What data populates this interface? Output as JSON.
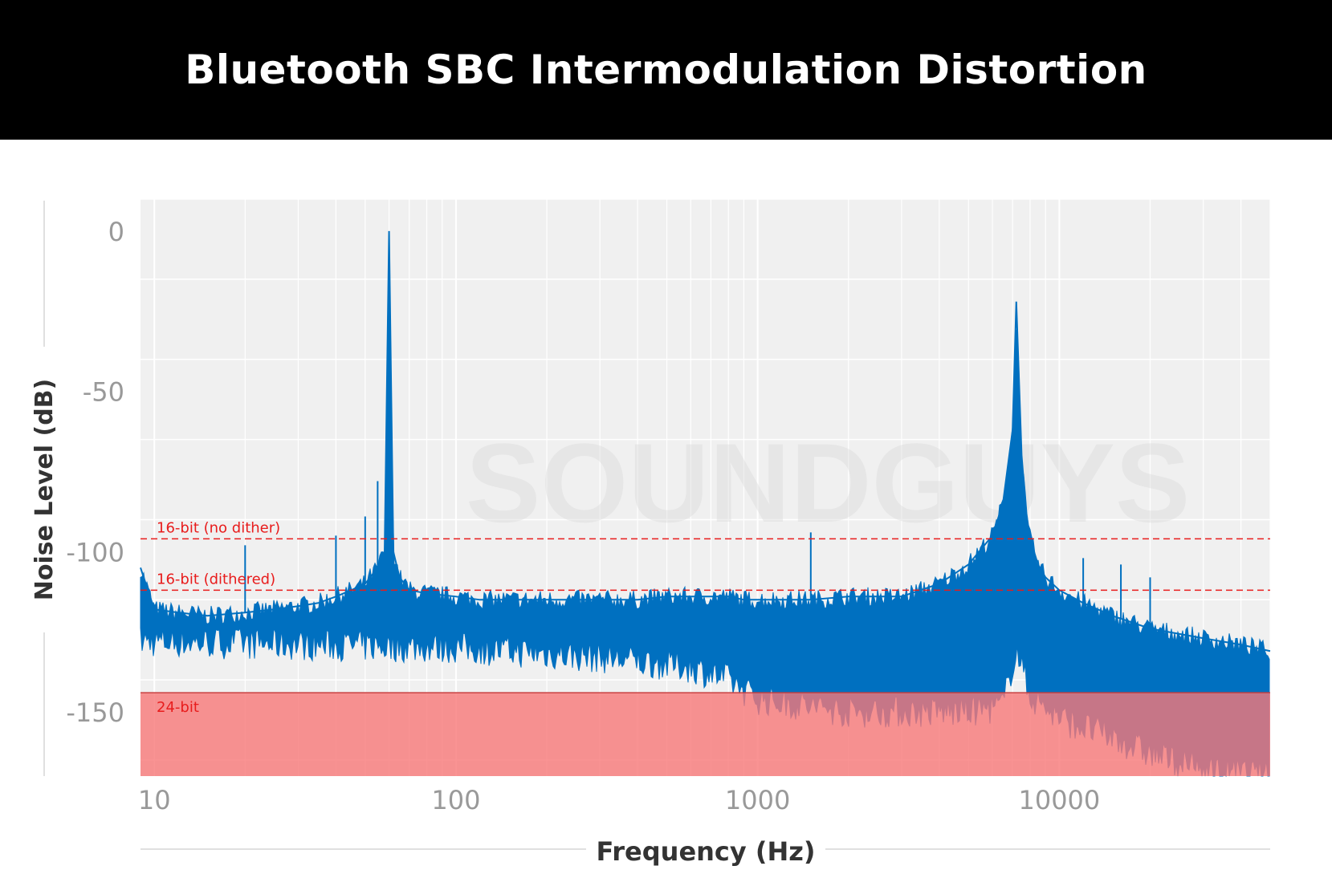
{
  "chart_data": {
    "type": "line",
    "title": "Bluetooth SBC Intermodulation Distortion",
    "xlabel": "Frequency (Hz)",
    "ylabel": "Noise Level (dB)",
    "x_scale": "log",
    "xlim": [
      9,
      50000
    ],
    "ylim": [
      -170,
      10
    ],
    "x_ticks": [
      10,
      100,
      1000,
      10000
    ],
    "x_tick_labels": [
      "10",
      "100",
      "1000",
      "10000"
    ],
    "y_ticks": [
      0,
      -50,
      -100,
      -150
    ],
    "y_tick_labels": [
      "0",
      "-50",
      "-100",
      "-150"
    ],
    "grid": true,
    "series": [
      {
        "color": "#0070c0",
        "x": [
          9,
          10,
          12,
          15,
          20,
          25,
          30,
          35,
          40,
          45,
          50,
          55,
          58,
          60,
          62,
          65,
          70,
          80,
          100,
          120,
          150,
          200,
          300,
          400,
          500,
          600,
          700,
          800,
          900,
          1000,
          1200,
          1500,
          2000,
          2500,
          3000,
          4000,
          5000,
          6000,
          6500,
          7000,
          7200,
          7500,
          7800,
          8000,
          8500,
          9000,
          10000,
          12000,
          15000,
          20000,
          30000,
          40000,
          50000
        ],
        "y": [
          -105,
          -118,
          -119,
          -120,
          -119,
          -118,
          -117,
          -116,
          -114,
          -112,
          -110,
          -105,
          -100,
          0,
          -100,
          -108,
          -112,
          -113,
          -114,
          -115,
          -115,
          -115,
          -115,
          -115,
          -114,
          -114,
          -114,
          -114,
          -115,
          -115,
          -115,
          -115,
          -114,
          -114,
          -114,
          -110,
          -104,
          -95,
          -85,
          -62,
          -22,
          -70,
          -90,
          -96,
          -104,
          -108,
          -112,
          -116,
          -120,
          -124,
          -127,
          -129,
          -131
        ]
      }
    ],
    "spectrum_floor": {
      "x": [
        9,
        100,
        300,
        600,
        800,
        1000,
        2000,
        5000,
        6500,
        7200,
        8000,
        10000,
        15000,
        20000,
        30000,
        50000
      ],
      "y": [
        -128,
        -130,
        -133,
        -136,
        -140,
        -146,
        -150,
        -150,
        -148,
        -130,
        -145,
        -152,
        -158,
        -163,
        -168,
        -170
      ]
    },
    "reference_lines": [
      {
        "label": "16-bit (no dither)",
        "y": -96,
        "color": "#e81c1c",
        "style": "dashed"
      },
      {
        "label": "16-bit (dithered)",
        "y": -112,
        "color": "#e81c1c",
        "style": "dashed"
      }
    ],
    "reference_band": {
      "label": "24-bit",
      "y_top": -144,
      "y_bottom": -170,
      "color": "#f87878"
    },
    "spikes": [
      {
        "x": 20,
        "y": -98
      },
      {
        "x": 40,
        "y": -95
      },
      {
        "x": 50,
        "y": -89
      },
      {
        "x": 55,
        "y": -78
      },
      {
        "x": 1500,
        "y": -94
      },
      {
        "x": 12000,
        "y": -102
      },
      {
        "x": 16000,
        "y": -104
      },
      {
        "x": 20000,
        "y": -108
      }
    ]
  }
}
